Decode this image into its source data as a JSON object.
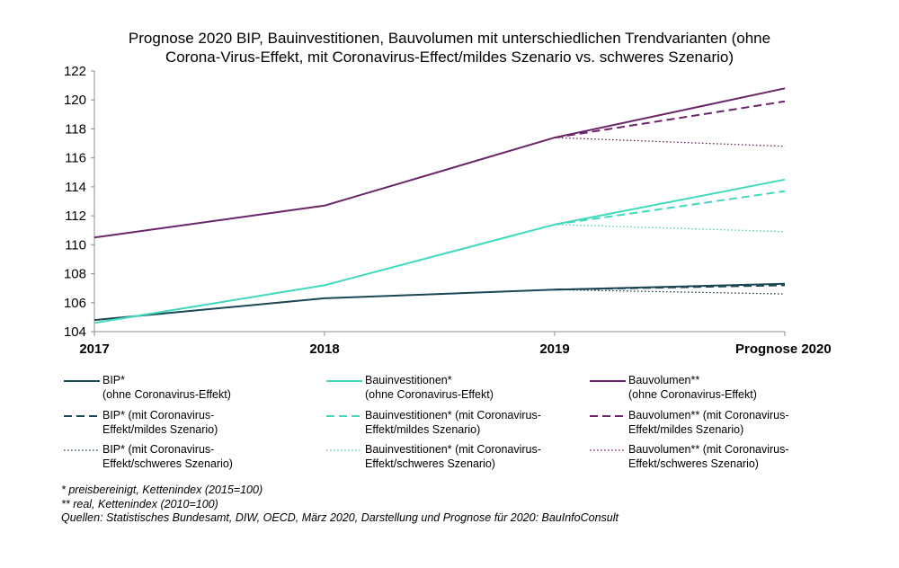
{
  "chart_data": {
    "type": "line",
    "title_lines": [
      "Prognose 2020 BIP, Bauinvestitionen, Bauvolumen mit unterschiedlichen Trendvarianten (ohne",
      "Corona-Virus-Effekt, mit Coronavirus-Effect/mildes Szenario vs. schweres Szenario)"
    ],
    "categories": [
      "2017",
      "2018",
      "2019",
      "Prognose 2020"
    ],
    "ylim": [
      104,
      122
    ],
    "yticks": [
      104,
      106,
      108,
      110,
      112,
      114,
      116,
      118,
      120,
      122
    ],
    "grid": false,
    "legend_position": "bottom",
    "series": [
      {
        "key": "bip",
        "label_lines": [
          "BIP*",
          "(ohne Coronavirus-Effekt)"
        ],
        "color": "#1b4653",
        "dash": "solid",
        "values": [
          104.8,
          106.3,
          106.9,
          107.3
        ]
      },
      {
        "key": "bip-mild",
        "label_lines": [
          "BIP* (mit Coronavirus-",
          "Effekt/mildes Szenario)"
        ],
        "color": "#1b4653",
        "dash": "dashed",
        "values": [
          null,
          null,
          106.9,
          107.2
        ]
      },
      {
        "key": "bip-schwer",
        "label_lines": [
          "BIP* (mit Coronavirus-",
          "Effekt/schweres Szenario)"
        ],
        "color": "#1b4653",
        "dash": "dotted",
        "values": [
          null,
          null,
          106.9,
          106.6
        ]
      },
      {
        "key": "bauinv",
        "label_lines": [
          "Bauinvestitionen*",
          "(ohne Coronavirus-Effekt)"
        ],
        "color": "#3fd9bd",
        "dash": "solid",
        "values": [
          104.6,
          107.2,
          111.4,
          114.5
        ]
      },
      {
        "key": "bauinv-mild",
        "label_lines": [
          "Bauinvestitionen*  (mit Coronavirus-",
          "Effekt/mildes Szenario)"
        ],
        "color": "#3fd9bd",
        "dash": "dashed",
        "values": [
          null,
          null,
          111.4,
          113.7
        ]
      },
      {
        "key": "bauinv-schwer",
        "label_lines": [
          "Bauinvestitionen*  (mit Coronavirus-",
          "Effekt/schweres Szenario)"
        ],
        "color": "#3fd9bd",
        "dash": "dotted",
        "values": [
          null,
          null,
          111.4,
          110.9
        ]
      },
      {
        "key": "bauvol",
        "label_lines": [
          "Bauvolumen**",
          "(ohne Coronavirus-Effekt)"
        ],
        "color": "#6b2469",
        "dash": "solid",
        "values": [
          110.5,
          112.7,
          117.4,
          120.8
        ]
      },
      {
        "key": "bauvol-mild",
        "label_lines": [
          "Bauvolumen**  (mit Coronavirus-",
          "Effekt/mildes Szenario)"
        ],
        "color": "#6b2469",
        "dash": "dashed",
        "values": [
          null,
          null,
          117.4,
          119.9
        ]
      },
      {
        "key": "bauvol-schwer",
        "label_lines": [
          "Bauvolumen**  (mit Coronavirus-",
          "Effekt/schweres Szenario)"
        ],
        "color": "#6b2469",
        "dash": "dotted",
        "values": [
          null,
          null,
          117.4,
          116.8
        ]
      }
    ],
    "footnotes": [
      "* preisbereinigt, Kettenindex (2015=100)",
      "** real, Kettenindex (2010=100)",
      "Quellen: Statistisches Bundesamt, DIW, OECD, März 2020, Darstellung und Prognose für 2020: BauInfoConsult"
    ]
  }
}
